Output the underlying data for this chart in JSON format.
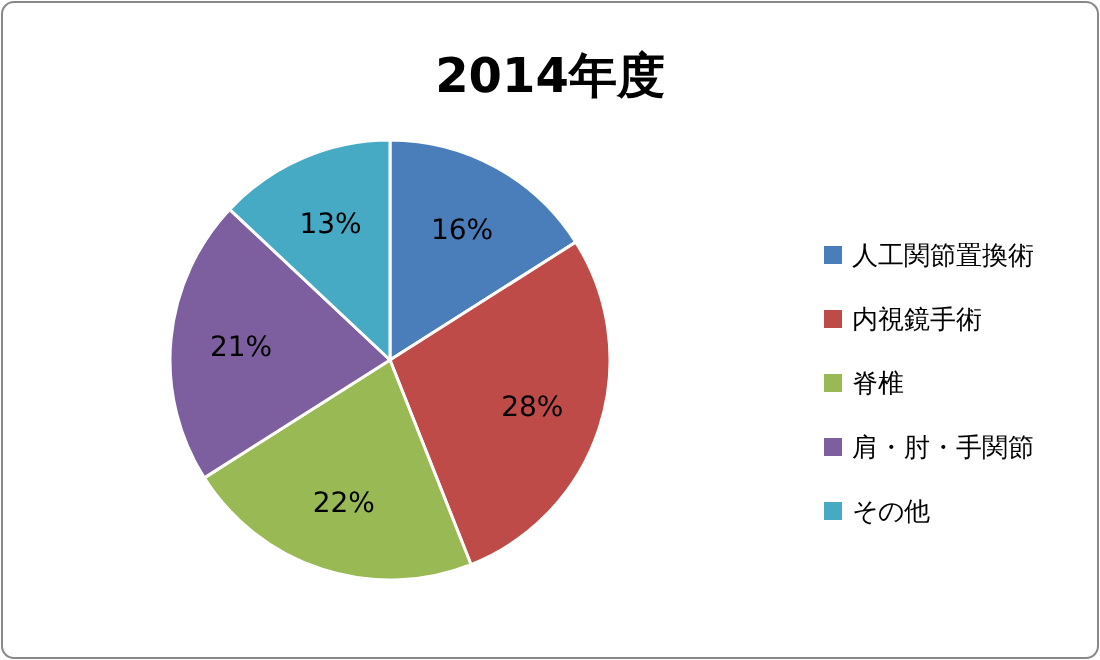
{
  "chart_data": {
    "type": "pie",
    "title": "2014年度",
    "categories": [
      "人工関節置換術",
      "内視鏡手術",
      "脊椎",
      "肩・肘・手関節",
      "その他"
    ],
    "values": [
      16,
      28,
      22,
      21,
      13
    ],
    "value_labels": [
      "16%",
      "28%",
      "22%",
      "21%",
      "13%"
    ],
    "colors": [
      "#4a7ebb",
      "#be4b48",
      "#98b954",
      "#7d5fa0",
      "#46aac5"
    ],
    "legend": "right"
  }
}
